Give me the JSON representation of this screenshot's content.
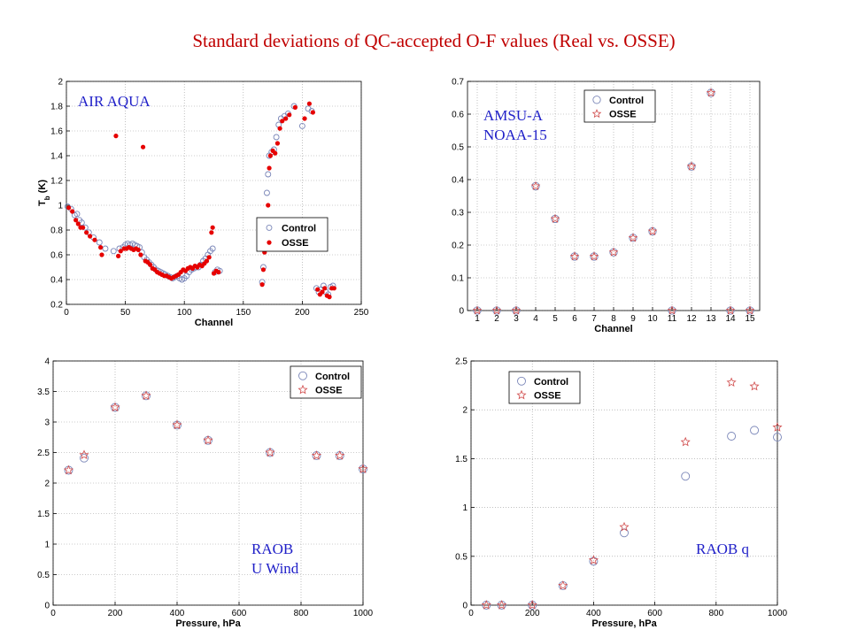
{
  "page": {
    "title": "Standard deviations of QC-accepted O-F values (Real vs. OSSE)"
  },
  "colors": {
    "control": "#7a86b8",
    "osse_air": "#e60000",
    "osse_star": "#d04a4a",
    "label": "#2020c8",
    "title": "#c00000"
  },
  "chart_data": [
    {
      "id": "air",
      "type": "scatter",
      "label_lines": [
        "AIR AQUA"
      ],
      "xlabel": "Channel",
      "ylabel": "T_b (K)",
      "xlim": [
        0,
        250
      ],
      "ylim": [
        0.2,
        2.0
      ],
      "xticks": [
        0,
        50,
        100,
        150,
        200,
        250
      ],
      "yticks": [
        0.2,
        0.4,
        0.6,
        0.8,
        1,
        1.2,
        1.4,
        1.6,
        1.8,
        2
      ],
      "grid": true,
      "legend_position": "right-middle",
      "control_marker": "circle",
      "osse_marker": "filled-dot",
      "series": [
        {
          "name": "Control",
          "points": [
            [
              1,
              0.99
            ],
            [
              4,
              0.97
            ],
            [
              7,
              0.92
            ],
            [
              9,
              0.93
            ],
            [
              11,
              0.88
            ],
            [
              13,
              0.86
            ],
            [
              16,
              0.82
            ],
            [
              19,
              0.78
            ],
            [
              23,
              0.74
            ],
            [
              28,
              0.7
            ],
            [
              33,
              0.65
            ],
            [
              40,
              0.63
            ],
            [
              45,
              0.65
            ],
            [
              48,
              0.66
            ],
            [
              50,
              0.68
            ],
            [
              52,
              0.69
            ],
            [
              54,
              0.68
            ],
            [
              56,
              0.69
            ],
            [
              58,
              0.68
            ],
            [
              60,
              0.67
            ],
            [
              62,
              0.66
            ],
            [
              64,
              0.62
            ],
            [
              66,
              0.58
            ],
            [
              68,
              0.56
            ],
            [
              70,
              0.54
            ],
            [
              72,
              0.52
            ],
            [
              74,
              0.5
            ],
            [
              76,
              0.48
            ],
            [
              78,
              0.47
            ],
            [
              80,
              0.46
            ],
            [
              82,
              0.45
            ],
            [
              84,
              0.44
            ],
            [
              86,
              0.43
            ],
            [
              88,
              0.42
            ],
            [
              90,
              0.41
            ],
            [
              92,
              0.42
            ],
            [
              94,
              0.43
            ],
            [
              96,
              0.41
            ],
            [
              98,
              0.4
            ],
            [
              100,
              0.41
            ],
            [
              102,
              0.43
            ],
            [
              104,
              0.46
            ],
            [
              106,
              0.48
            ],
            [
              108,
              0.49
            ],
            [
              110,
              0.5
            ],
            [
              112,
              0.5
            ],
            [
              114,
              0.52
            ],
            [
              116,
              0.55
            ],
            [
              118,
              0.57
            ],
            [
              120,
              0.6
            ],
            [
              122,
              0.63
            ],
            [
              124,
              0.65
            ],
            [
              126,
              0.46
            ],
            [
              128,
              0.48
            ],
            [
              130,
              0.47
            ],
            [
              166,
              0.38
            ],
            [
              167,
              0.5
            ],
            [
              168,
              0.8
            ],
            [
              170,
              1.1
            ],
            [
              171,
              1.25
            ],
            [
              172,
              1.4
            ],
            [
              174,
              1.43
            ],
            [
              176,
              1.45
            ],
            [
              178,
              1.55
            ],
            [
              180,
              1.65
            ],
            [
              182,
              1.7
            ],
            [
              185,
              1.72
            ],
            [
              188,
              1.74
            ],
            [
              193,
              1.8
            ],
            [
              200,
              1.64
            ],
            [
              205,
              1.78
            ],
            [
              208,
              1.76
            ],
            [
              212,
              0.33
            ],
            [
              214,
              0.3
            ],
            [
              216,
              0.32
            ],
            [
              218,
              0.35
            ],
            [
              220,
              0.3
            ],
            [
              222,
              0.28
            ],
            [
              224,
              0.34
            ],
            [
              226,
              0.35
            ]
          ]
        },
        {
          "name": "OSSE",
          "points": [
            [
              2,
              0.98
            ],
            [
              5,
              0.95
            ],
            [
              8,
              0.88
            ],
            [
              10,
              0.85
            ],
            [
              12,
              0.82
            ],
            [
              14,
              0.82
            ],
            [
              17,
              0.78
            ],
            [
              20,
              0.75
            ],
            [
              24,
              0.72
            ],
            [
              29,
              0.66
            ],
            [
              30,
              0.6
            ],
            [
              42,
              1.56
            ],
            [
              44,
              0.59
            ],
            [
              46,
              0.63
            ],
            [
              49,
              0.65
            ],
            [
              51,
              0.65
            ],
            [
              53,
              0.66
            ],
            [
              55,
              0.65
            ],
            [
              57,
              0.64
            ],
            [
              59,
              0.65
            ],
            [
              61,
              0.64
            ],
            [
              63,
              0.6
            ],
            [
              65,
              1.47
            ],
            [
              67,
              0.55
            ],
            [
              69,
              0.54
            ],
            [
              71,
              0.52
            ],
            [
              73,
              0.49
            ],
            [
              75,
              0.48
            ],
            [
              77,
              0.46
            ],
            [
              79,
              0.45
            ],
            [
              81,
              0.44
            ],
            [
              83,
              0.43
            ],
            [
              85,
              0.43
            ],
            [
              87,
              0.42
            ],
            [
              89,
              0.41
            ],
            [
              91,
              0.42
            ],
            [
              93,
              0.43
            ],
            [
              95,
              0.44
            ],
            [
              97,
              0.46
            ],
            [
              99,
              0.48
            ],
            [
              101,
              0.47
            ],
            [
              103,
              0.49
            ],
            [
              105,
              0.5
            ],
            [
              107,
              0.49
            ],
            [
              109,
              0.51
            ],
            [
              111,
              0.5
            ],
            [
              113,
              0.52
            ],
            [
              115,
              0.51
            ],
            [
              117,
              0.53
            ],
            [
              119,
              0.55
            ],
            [
              121,
              0.58
            ],
            [
              123,
              0.78
            ],
            [
              124,
              0.82
            ],
            [
              125,
              0.45
            ],
            [
              127,
              0.47
            ],
            [
              129,
              0.46
            ],
            [
              166,
              0.36
            ],
            [
              167,
              0.48
            ],
            [
              168,
              0.62
            ],
            [
              169,
              0.75
            ],
            [
              171,
              1.0
            ],
            [
              172,
              1.3
            ],
            [
              173,
              1.4
            ],
            [
              175,
              1.44
            ],
            [
              177,
              1.42
            ],
            [
              179,
              1.5
            ],
            [
              181,
              1.62
            ],
            [
              183,
              1.68
            ],
            [
              186,
              1.7
            ],
            [
              189,
              1.73
            ],
            [
              194,
              1.79
            ],
            [
              202,
              1.7
            ],
            [
              206,
              1.82
            ],
            [
              209,
              1.75
            ],
            [
              213,
              0.32
            ],
            [
              215,
              0.28
            ],
            [
              217,
              0.3
            ],
            [
              219,
              0.33
            ],
            [
              221,
              0.27
            ],
            [
              223,
              0.26
            ],
            [
              225,
              0.33
            ],
            [
              227,
              0.33
            ]
          ]
        }
      ]
    },
    {
      "id": "amsu",
      "type": "scatter",
      "label_lines": [
        "AMSU-A",
        "NOAA-15"
      ],
      "xlabel": "Channel",
      "ylabel": "",
      "xlim": [
        0.5,
        15.5
      ],
      "ylim": [
        0,
        0.7
      ],
      "xticks": [
        1,
        2,
        3,
        4,
        5,
        6,
        7,
        8,
        9,
        10,
        11,
        12,
        13,
        14,
        15
      ],
      "yticks": [
        0,
        0.1,
        0.2,
        0.3,
        0.4,
        0.5,
        0.6,
        0.7
      ],
      "grid": true,
      "legend_position": "top-right",
      "control_marker": "circle",
      "osse_marker": "star",
      "series": [
        {
          "name": "Control",
          "points": [
            [
              1,
              0
            ],
            [
              2,
              0
            ],
            [
              3,
              0
            ],
            [
              4,
              0.38
            ],
            [
              5,
              0.28
            ],
            [
              6,
              0.165
            ],
            [
              7,
              0.165
            ],
            [
              8,
              0.178
            ],
            [
              9,
              0.222
            ],
            [
              10,
              0.242
            ],
            [
              11,
              0
            ],
            [
              12,
              0.44
            ],
            [
              13,
              0.665
            ],
            [
              14,
              0
            ],
            [
              15,
              0
            ]
          ]
        },
        {
          "name": "OSSE",
          "points": [
            [
              1,
              0
            ],
            [
              2,
              0
            ],
            [
              3,
              0
            ],
            [
              4,
              0.38
            ],
            [
              5,
              0.28
            ],
            [
              6,
              0.165
            ],
            [
              7,
              0.165
            ],
            [
              8,
              0.178
            ],
            [
              9,
              0.222
            ],
            [
              10,
              0.242
            ],
            [
              11,
              0
            ],
            [
              12,
              0.44
            ],
            [
              13,
              0.665
            ],
            [
              14,
              0
            ],
            [
              15,
              0
            ]
          ]
        }
      ]
    },
    {
      "id": "uwind",
      "type": "scatter",
      "label_lines": [
        "RAOB",
        "U Wind"
      ],
      "xlabel": "Pressure, hPa",
      "ylabel": "",
      "xlim": [
        0,
        1000
      ],
      "ylim": [
        0,
        4
      ],
      "xticks": [
        0,
        200,
        400,
        600,
        800,
        1000
      ],
      "yticks": [
        0,
        0.5,
        1,
        1.5,
        2,
        2.5,
        3,
        3.5,
        4
      ],
      "grid": true,
      "legend_position": "top-right",
      "control_marker": "circle",
      "osse_marker": "star",
      "series": [
        {
          "name": "Control",
          "points": [
            [
              50,
              2.21
            ],
            [
              100,
              2.41
            ],
            [
              200,
              3.24
            ],
            [
              300,
              3.43
            ],
            [
              400,
              2.95
            ],
            [
              500,
              2.7
            ],
            [
              700,
              2.5
            ],
            [
              850,
              2.45
            ],
            [
              925,
              2.45
            ],
            [
              1000,
              2.23
            ]
          ]
        },
        {
          "name": "OSSE",
          "points": [
            [
              50,
              2.21
            ],
            [
              100,
              2.46
            ],
            [
              200,
              3.24
            ],
            [
              300,
              3.43
            ],
            [
              400,
              2.95
            ],
            [
              500,
              2.7
            ],
            [
              700,
              2.5
            ],
            [
              850,
              2.45
            ],
            [
              925,
              2.45
            ],
            [
              1000,
              2.23
            ]
          ]
        }
      ]
    },
    {
      "id": "q",
      "type": "scatter",
      "label_lines": [
        "RAOB  q"
      ],
      "xlabel": "Pressure, hPa",
      "ylabel": "",
      "xlim": [
        0,
        1000
      ],
      "ylim": [
        0,
        2.5
      ],
      "xticks": [
        0,
        200,
        400,
        600,
        800,
        1000
      ],
      "yticks": [
        0,
        0.5,
        1,
        1.5,
        2,
        2.5
      ],
      "grid": true,
      "legend_position": "top-left",
      "control_marker": "circle",
      "osse_marker": "star",
      "series": [
        {
          "name": "Control",
          "points": [
            [
              50,
              0
            ],
            [
              100,
              0
            ],
            [
              200,
              0
            ],
            [
              300,
              0.2
            ],
            [
              400,
              0.45
            ],
            [
              500,
              0.74
            ],
            [
              700,
              1.32
            ],
            [
              850,
              1.73
            ],
            [
              925,
              1.79
            ],
            [
              1000,
              1.72
            ]
          ]
        },
        {
          "name": "OSSE",
          "points": [
            [
              50,
              0
            ],
            [
              100,
              0
            ],
            [
              200,
              0
            ],
            [
              300,
              0.2
            ],
            [
              400,
              0.46
            ],
            [
              500,
              0.8
            ],
            [
              700,
              1.67
            ],
            [
              850,
              2.28
            ],
            [
              925,
              2.24
            ],
            [
              1000,
              1.82
            ]
          ]
        }
      ]
    }
  ]
}
